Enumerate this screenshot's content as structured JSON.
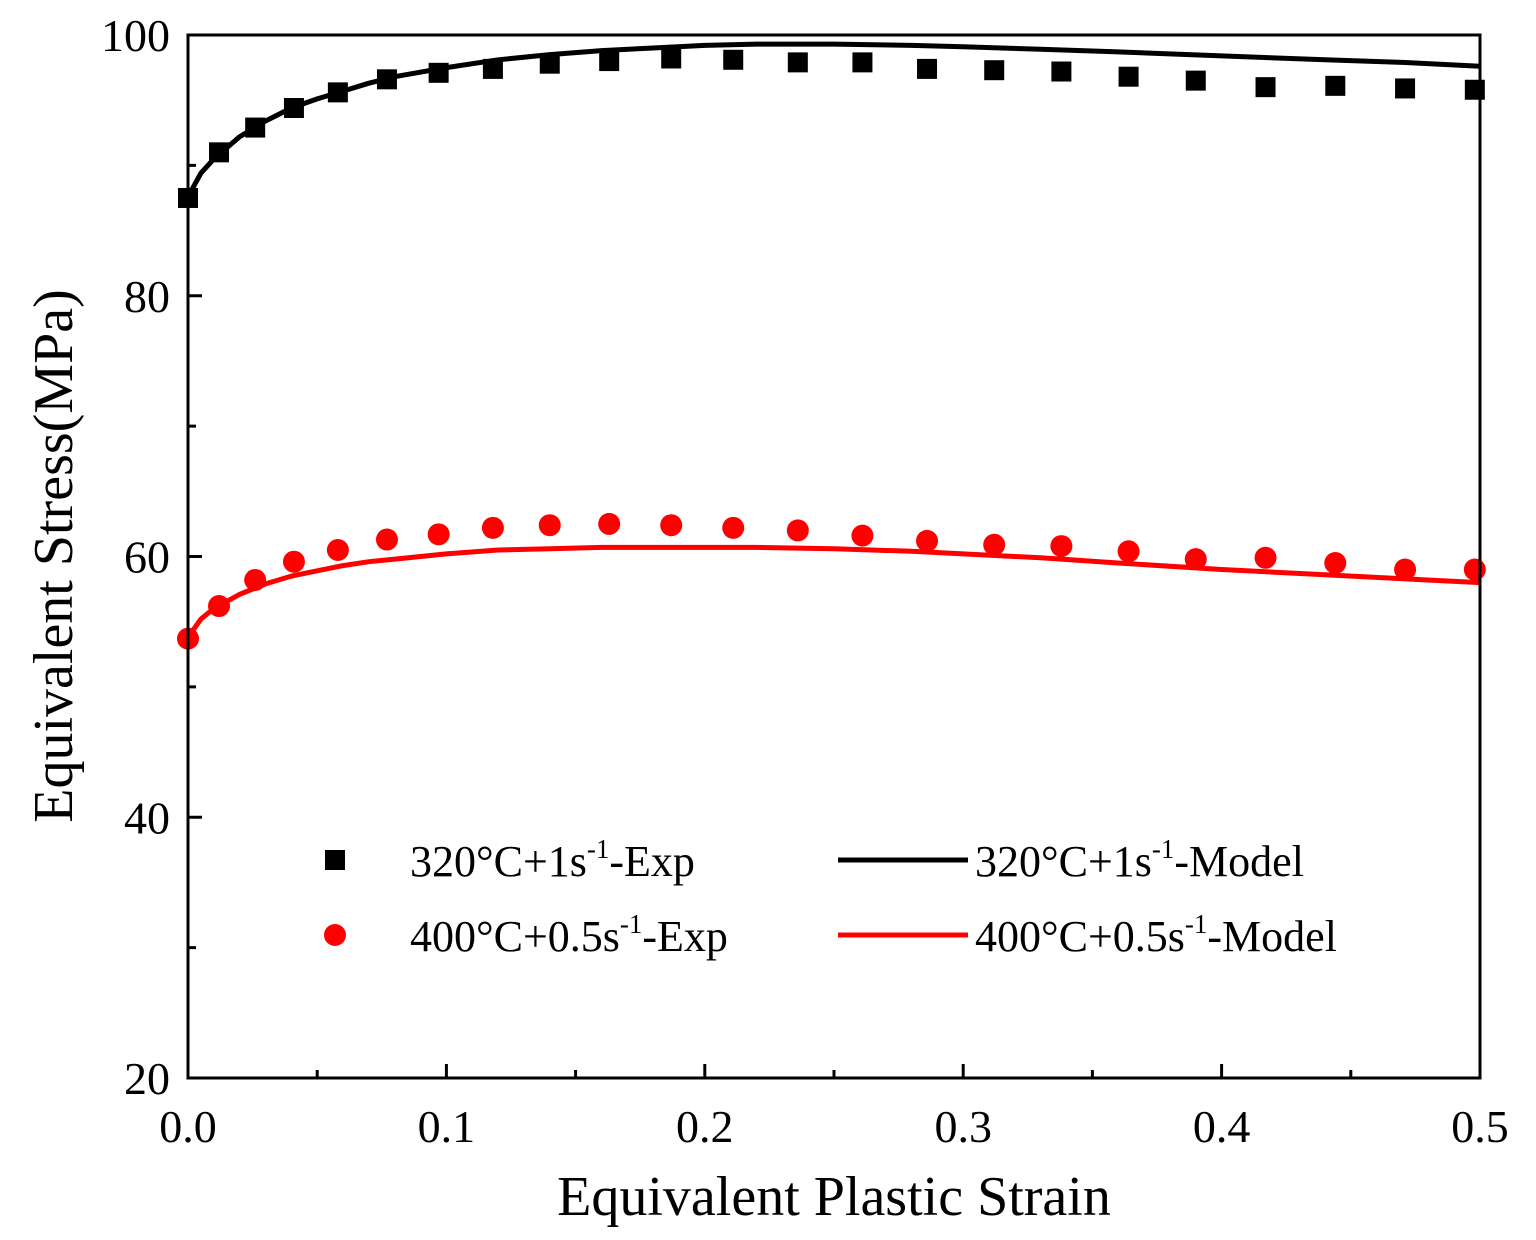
{
  "chart_data": {
    "type": "scatter",
    "title": "",
    "xlabel": "Equivalent Plastic Strain",
    "ylabel": "Equivalent Stress(MPa)",
    "xlim": [
      0.0,
      0.5
    ],
    "ylim": [
      20,
      100
    ],
    "xticks": [
      "0.0",
      "0.1",
      "0.2",
      "0.3",
      "0.4",
      "0.5"
    ],
    "yticks": [
      "20",
      "40",
      "60",
      "80",
      "100"
    ],
    "grid": false,
    "legend_position": "bottom-center",
    "series": [
      {
        "name": "320°C+1s⁻¹-Exp",
        "legend_main": "320°C+1s",
        "legend_sup": "-1",
        "legend_tail": "-Exp",
        "kind": "scatter",
        "marker": "square",
        "color": "#000000",
        "x": [
          0.0,
          0.012,
          0.026,
          0.041,
          0.058,
          0.077,
          0.097,
          0.118,
          0.14,
          0.163,
          0.187,
          0.211,
          0.236,
          0.261,
          0.286,
          0.312,
          0.338,
          0.364,
          0.39,
          0.417,
          0.444,
          0.471,
          0.498
        ],
        "y": [
          87.5,
          91.0,
          92.9,
          94.4,
          95.6,
          96.6,
          97.1,
          97.4,
          97.8,
          98.0,
          98.2,
          98.1,
          97.9,
          97.9,
          97.4,
          97.3,
          97.2,
          96.8,
          96.5,
          96.0,
          96.1,
          95.9,
          95.8
        ]
      },
      {
        "name": "400°C+0.5s⁻¹-Exp",
        "legend_main": "400°C+0.5s",
        "legend_sup": "-1",
        "legend_tail": "-Exp",
        "kind": "scatter",
        "marker": "circle",
        "color": "#ff0000",
        "x": [
          0.0,
          0.012,
          0.026,
          0.041,
          0.058,
          0.077,
          0.097,
          0.118,
          0.14,
          0.163,
          0.187,
          0.211,
          0.236,
          0.261,
          0.286,
          0.312,
          0.338,
          0.364,
          0.39,
          0.417,
          0.444,
          0.471,
          0.498
        ],
        "y": [
          53.7,
          56.2,
          58.2,
          59.6,
          60.5,
          61.3,
          61.7,
          62.2,
          62.4,
          62.5,
          62.4,
          62.2,
          62.0,
          61.6,
          61.2,
          60.9,
          60.8,
          60.4,
          59.8,
          59.9,
          59.5,
          59.0,
          59.0
        ]
      },
      {
        "name": "320°C+1s⁻¹-Model",
        "legend_main": "320°C+1s",
        "legend_sup": "-1",
        "legend_tail": "-Model",
        "kind": "line",
        "color": "#000000",
        "x": [
          0.0,
          0.005,
          0.01,
          0.02,
          0.03,
          0.04,
          0.05,
          0.06,
          0.07,
          0.08,
          0.1,
          0.12,
          0.14,
          0.16,
          0.18,
          0.2,
          0.22,
          0.25,
          0.28,
          0.3,
          0.33,
          0.36,
          0.4,
          0.44,
          0.47,
          0.5
        ],
        "y": [
          87.6,
          89.4,
          90.5,
          92.2,
          93.4,
          94.4,
          95.1,
          95.7,
          96.3,
          96.8,
          97.5,
          98.1,
          98.5,
          98.8,
          99.0,
          99.2,
          99.3,
          99.3,
          99.2,
          99.1,
          98.9,
          98.7,
          98.4,
          98.1,
          97.9,
          97.6
        ]
      },
      {
        "name": "400°C+0.5s⁻¹-Model",
        "legend_main": "400°C+0.5s",
        "legend_sup": "-1",
        "legend_tail": "-Model",
        "kind": "line",
        "color": "#ff0000",
        "x": [
          0.0,
          0.005,
          0.01,
          0.02,
          0.03,
          0.04,
          0.05,
          0.06,
          0.07,
          0.08,
          0.1,
          0.12,
          0.14,
          0.16,
          0.18,
          0.2,
          0.22,
          0.25,
          0.28,
          0.3,
          0.33,
          0.36,
          0.4,
          0.44,
          0.47,
          0.5
        ],
        "y": [
          53.8,
          55.2,
          56.0,
          57.1,
          57.9,
          58.5,
          58.9,
          59.3,
          59.6,
          59.8,
          60.2,
          60.5,
          60.6,
          60.7,
          60.7,
          60.7,
          60.7,
          60.6,
          60.4,
          60.2,
          59.9,
          59.5,
          59.0,
          58.6,
          58.3,
          58.0
        ]
      }
    ]
  }
}
